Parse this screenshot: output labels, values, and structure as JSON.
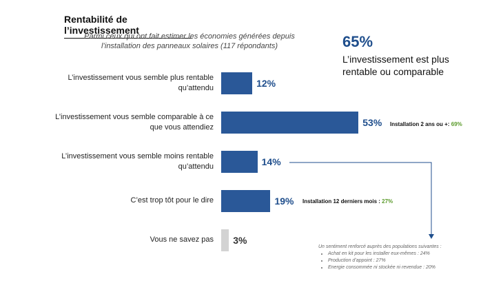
{
  "title": "Rentabilité de l’investissement",
  "subtitle": "Parmi ceux qui ont fait estimer les économies générées depuis l’installation des panneaux solaires (117 répondants)",
  "highlight": {
    "value": "65%",
    "text": "L’investissement est plus rentable ou comparable"
  },
  "colors": {
    "bar": "#2a5898",
    "bar_muted": "#d3d3d3",
    "label": "#1f4e8c",
    "accent": "#5a9a2a"
  },
  "chart_data": {
    "type": "bar",
    "orientation": "horizontal",
    "categories": [
      "L’investissement vous semble plus rentable qu’attendu",
      "L’investissement vous semble comparable à ce que vous attendiez",
      "L’investissement vous semble moins rentable qu’attendu",
      "C’est trop tôt pour le dire",
      "Vous ne savez pas"
    ],
    "values": [
      12,
      53,
      14,
      19,
      3
    ],
    "data_labels": [
      "12%",
      "53%",
      "14%",
      "19%",
      "3%"
    ],
    "grid": false
  },
  "notes": [
    {
      "prefix": "Installation 2 ans ou +: ",
      "value": "69%"
    },
    {
      "prefix": "Installation 12 derniers mois : ",
      "value": "27%"
    }
  ],
  "footnote": {
    "heading": "Un sentiment renforcé auprès des populations suivantes :",
    "items": [
      "Achat en kit pour les installer eux-mêmes : 24%",
      "Production d’appoint : 27%",
      "Energie consommée ni stockée ni revendue : 20%"
    ]
  }
}
